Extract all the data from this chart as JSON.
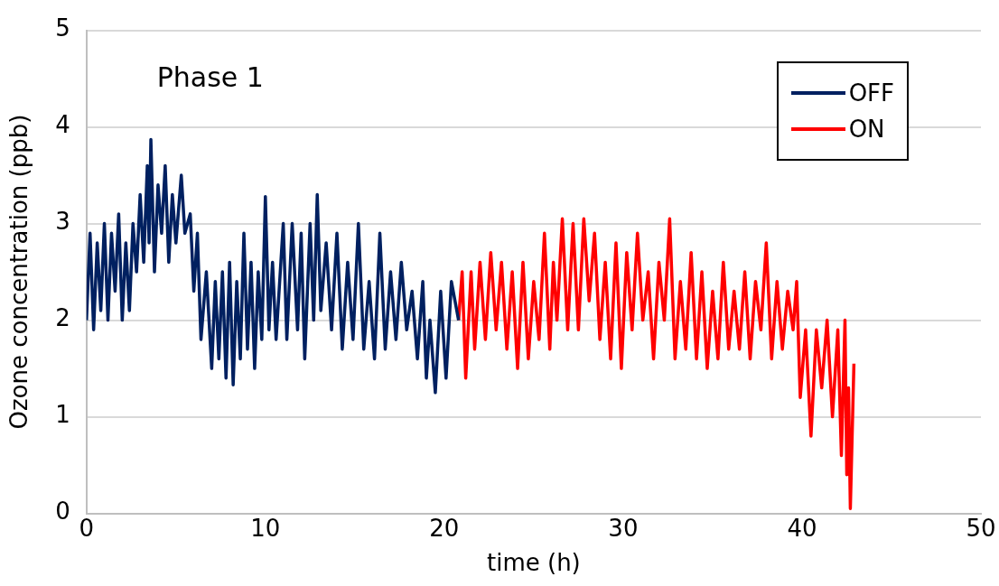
{
  "chart_data": {
    "type": "line",
    "xlabel": "time (h)",
    "ylabel": "Ozone concentration (ppb)",
    "annotations": [
      "Phase 1"
    ],
    "xlim": [
      0,
      50
    ],
    "xticks": [
      0,
      10,
      20,
      30,
      40,
      50
    ],
    "ylim": [
      0,
      5
    ],
    "yticks": [
      0,
      1,
      2,
      3,
      4,
      5
    ],
    "grid": "y",
    "legend": "top right",
    "marker": "none",
    "line_style": "solid",
    "series": [
      {
        "name": "OFF",
        "color": "#002060",
        "x": [
          0,
          0.2,
          0.4,
          0.6,
          0.8,
          1.0,
          1.2,
          1.4,
          1.6,
          1.8,
          2.0,
          2.2,
          2.4,
          2.6,
          2.8,
          3.0,
          3.2,
          3.4,
          3.5,
          3.6,
          3.8,
          4.0,
          4.2,
          4.4,
          4.6,
          4.8,
          5.0,
          5.3,
          5.5,
          5.8,
          6.0,
          6.2,
          6.4,
          6.7,
          7.0,
          7.2,
          7.4,
          7.6,
          7.8,
          8.0,
          8.2,
          8.4,
          8.6,
          8.8,
          9.0,
          9.2,
          9.4,
          9.6,
          9.8,
          10.0,
          10.2,
          10.4,
          10.6,
          11.0,
          11.2,
          11.5,
          11.8,
          12.0,
          12.2,
          12.5,
          12.7,
          12.9,
          13.1,
          13.4,
          13.7,
          14.0,
          14.3,
          14.6,
          14.9,
          15.2,
          15.5,
          15.8,
          16.1,
          16.4,
          16.7,
          17.0,
          17.3,
          17.6,
          17.9,
          18.2,
          18.5,
          18.8,
          19.0,
          19.2,
          19.5,
          19.8,
          20.1,
          20.4,
          20.8
        ],
        "values": [
          2.0,
          2.9,
          1.9,
          2.8,
          2.1,
          3.0,
          2.0,
          2.9,
          2.3,
          3.1,
          2.0,
          2.8,
          2.1,
          3.0,
          2.5,
          3.3,
          2.6,
          3.6,
          2.8,
          3.87,
          2.5,
          3.4,
          2.9,
          3.6,
          2.6,
          3.3,
          2.8,
          3.5,
          2.9,
          3.1,
          2.3,
          2.9,
          1.8,
          2.5,
          1.5,
          2.4,
          1.6,
          2.5,
          1.4,
          2.6,
          1.33,
          2.4,
          1.6,
          2.9,
          1.7,
          2.6,
          1.5,
          2.5,
          1.8,
          3.28,
          1.9,
          2.6,
          1.8,
          3.0,
          1.8,
          3.0,
          1.9,
          2.9,
          1.6,
          3.0,
          2.0,
          3.3,
          2.1,
          2.8,
          1.9,
          2.9,
          1.7,
          2.6,
          1.8,
          3.0,
          1.7,
          2.4,
          1.6,
          2.9,
          1.7,
          2.5,
          1.8,
          2.6,
          1.9,
          2.3,
          1.6,
          2.4,
          1.4,
          2.0,
          1.25,
          2.3,
          1.4,
          2.4,
          2.0
        ]
      },
      {
        "name": "ON",
        "color": "#ff0000",
        "x": [
          20.8,
          21.0,
          21.2,
          21.5,
          21.7,
          22.0,
          22.3,
          22.6,
          22.9,
          23.2,
          23.5,
          23.8,
          24.1,
          24.4,
          24.7,
          25.0,
          25.3,
          25.6,
          25.9,
          26.1,
          26.3,
          26.6,
          26.9,
          27.2,
          27.5,
          27.8,
          28.1,
          28.4,
          28.7,
          29.0,
          29.3,
          29.6,
          29.9,
          30.2,
          30.5,
          30.8,
          31.1,
          31.4,
          31.7,
          32.0,
          32.3,
          32.6,
          32.9,
          33.2,
          33.5,
          33.8,
          34.1,
          34.4,
          34.7,
          35.0,
          35.3,
          35.6,
          35.9,
          36.2,
          36.5,
          36.8,
          37.1,
          37.4,
          37.7,
          38.0,
          38.3,
          38.6,
          38.9,
          39.2,
          39.5,
          39.7,
          39.9,
          40.2,
          40.5,
          40.8,
          41.1,
          41.4,
          41.7,
          42.0,
          42.2,
          42.4,
          42.5,
          42.6,
          42.7,
          42.9
        ],
        "values": [
          2.0,
          2.5,
          1.4,
          2.5,
          1.7,
          2.6,
          1.8,
          2.7,
          1.9,
          2.6,
          1.7,
          2.5,
          1.5,
          2.6,
          1.6,
          2.4,
          1.8,
          2.9,
          1.7,
          2.6,
          2.0,
          3.05,
          1.9,
          3.0,
          1.9,
          3.05,
          2.2,
          2.9,
          1.8,
          2.6,
          1.6,
          2.8,
          1.5,
          2.7,
          1.9,
          2.9,
          2.0,
          2.5,
          1.6,
          2.6,
          2.0,
          3.05,
          1.6,
          2.4,
          1.7,
          2.7,
          1.6,
          2.5,
          1.5,
          2.3,
          1.6,
          2.6,
          1.7,
          2.3,
          1.7,
          2.5,
          1.6,
          2.4,
          1.9,
          2.8,
          1.6,
          2.4,
          1.7,
          2.3,
          1.9,
          2.4,
          1.2,
          1.9,
          0.8,
          1.9,
          1.3,
          2.0,
          1.0,
          1.9,
          0.6,
          2.0,
          0.4,
          1.3,
          0.05,
          1.55
        ]
      }
    ]
  }
}
